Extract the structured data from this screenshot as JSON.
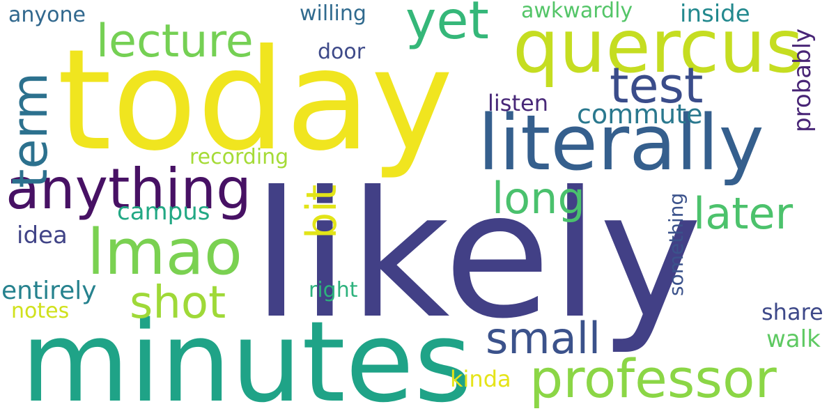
{
  "words": {
    "today": {
      "text": "today",
      "color": "#f0e51f"
    },
    "likely": {
      "text": "likely",
      "color": "#424086"
    },
    "minutes": {
      "text": "minutes",
      "color": "#1fa387"
    },
    "quercus": {
      "text": "quercus",
      "color": "#c5dd21"
    },
    "literally": {
      "text": "literally",
      "color": "#355f8d"
    },
    "professor": {
      "text": "professor",
      "color": "#8bd646"
    },
    "anything": {
      "text": "anything",
      "color": "#471164"
    },
    "lecture": {
      "text": "lecture",
      "color": "#75d054"
    },
    "lmao": {
      "text": "lmao",
      "color": "#7ad151"
    },
    "test": {
      "text": "test",
      "color": "#3a4c8a"
    },
    "term": {
      "text": "term",
      "color": "#2c718e"
    },
    "yet": {
      "text": "yet",
      "color": "#35b779"
    },
    "shot": {
      "text": "shot",
      "color": "#9fd938"
    },
    "small": {
      "text": "small",
      "color": "#3b528b"
    },
    "long": {
      "text": "long",
      "color": "#4ac16d"
    },
    "later": {
      "text": "later",
      "color": "#4cc26c"
    },
    "bit": {
      "text": "bit",
      "color": "#e2e418"
    },
    "commute": {
      "text": "commute",
      "color": "#2a788e"
    },
    "campus": {
      "text": "campus",
      "color": "#22a884"
    },
    "entirely": {
      "text": "entirely",
      "color": "#26828e"
    },
    "idea": {
      "text": "idea",
      "color": "#414487"
    },
    "notes": {
      "text": "notes",
      "color": "#d0e11c"
    },
    "recording": {
      "text": "recording",
      "color": "#a5db36"
    },
    "listen": {
      "text": "listen",
      "color": "#482878"
    },
    "right": {
      "text": "right",
      "color": "#2db27d"
    },
    "kinda": {
      "text": "kinda",
      "color": "#e5e419"
    },
    "willing": {
      "text": "willing",
      "color": "#306a8e"
    },
    "awkwardly": {
      "text": "awkwardly",
      "color": "#54c568"
    },
    "inside": {
      "text": "inside",
      "color": "#23898e"
    },
    "door": {
      "text": "door",
      "color": "#3e4a89"
    },
    "anyone": {
      "text": "anyone",
      "color": "#31688e"
    },
    "probably": {
      "text": "probably",
      "color": "#482576"
    },
    "something": {
      "text": "something",
      "color": "#3b528b"
    },
    "share": {
      "text": "share",
      "color": "#3e4989"
    },
    "walk": {
      "text": "walk",
      "color": "#5ec962"
    }
  }
}
